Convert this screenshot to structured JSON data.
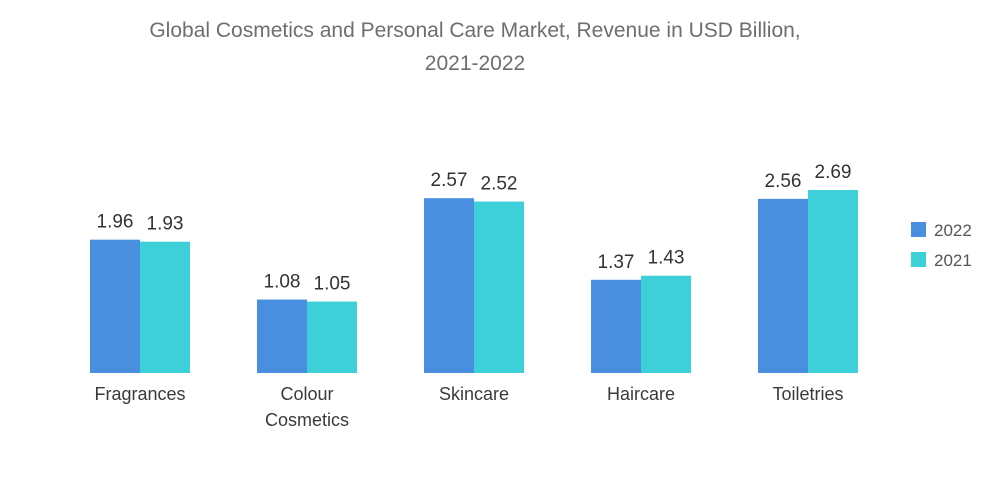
{
  "chart_data": {
    "type": "bar",
    "title_lines": [
      "Global Cosmetics and Personal Care Market, Revenue in USD Billion,",
      "2021-2022"
    ],
    "categories": [
      [
        "Fragrances"
      ],
      [
        "Colour",
        "Cosmetics"
      ],
      [
        "Skincare"
      ],
      [
        "Haircare"
      ],
      [
        "Toiletries"
      ]
    ],
    "series": [
      {
        "name": "2022",
        "color": "#4a8fdf",
        "values": [
          1.96,
          1.08,
          2.57,
          1.37,
          2.56
        ]
      },
      {
        "name": "2021",
        "color": "#3ed0d9",
        "values": [
          1.93,
          1.05,
          2.52,
          1.43,
          2.69
        ]
      }
    ],
    "ylim": [
      0,
      2.69
    ],
    "xlabel": "",
    "ylabel": "",
    "grid": false,
    "legend": "right"
  }
}
